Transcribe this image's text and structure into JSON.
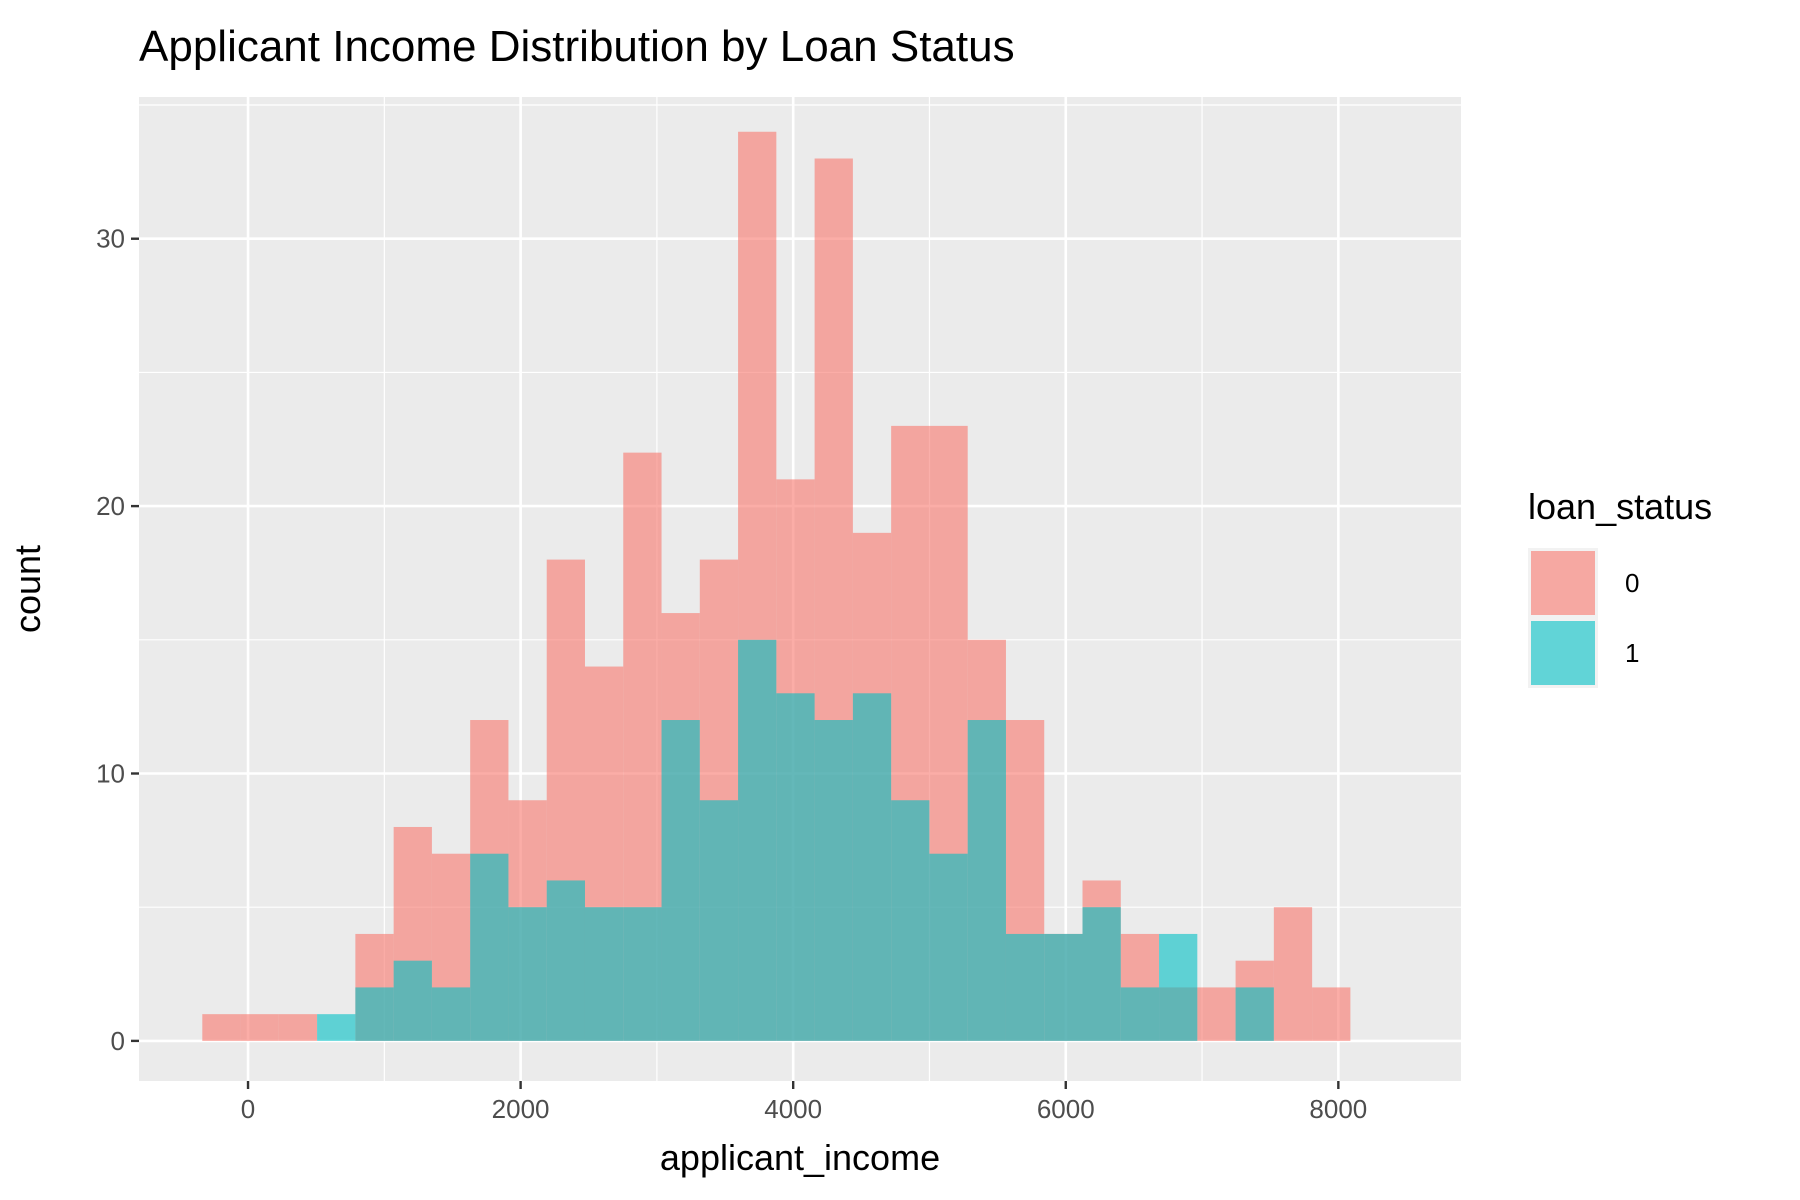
{
  "chart_data": {
    "type": "bar",
    "subtype": "overlapping histogram",
    "title": "Applicant Income Distribution by Loan Status",
    "xlabel": "applicant_income",
    "ylabel": "count",
    "xlim": [
      -800,
      8900
    ],
    "ylim": [
      -1.5,
      35.3
    ],
    "x_ticks": [
      0,
      2000,
      4000,
      6000,
      8000
    ],
    "x_tick_labels": [
      "0",
      "2000",
      "4000",
      "6000",
      "8000"
    ],
    "y_ticks": [
      0,
      10,
      20,
      30
    ],
    "y_tick_labels": [
      "0",
      "10",
      "20",
      "30"
    ],
    "grid": true,
    "legend": {
      "title": "loan_status",
      "position": "right"
    },
    "bin_edges": [
      -335.6,
      -54.8,
      226.0,
      506.8,
      787.6,
      1068.4,
      1349.2,
      1630.0,
      1910.8,
      2191.6,
      2472.4,
      2753.2,
      3034.0,
      3314.8,
      3595.6,
      3876.4,
      4157.2,
      4438.0,
      4718.8,
      4999.6,
      5280.4,
      5561.2,
      5842.0,
      6122.8,
      6403.6,
      6684.4,
      6965.2,
      7246.0,
      7526.8,
      7807.6,
      8088.4
    ],
    "series": [
      {
        "name": "0",
        "color": "#F8766D",
        "opacity": 0.6,
        "values": [
          1,
          1,
          1,
          0,
          4,
          8,
          7,
          12,
          9,
          18,
          14,
          22,
          16,
          18,
          34,
          21,
          33,
          19,
          23,
          23,
          15,
          12,
          4,
          6,
          4,
          2,
          2,
          3,
          5,
          2
        ]
      },
      {
        "name": "1",
        "color": "#00BFC4",
        "opacity": 0.6,
        "values": [
          0,
          0,
          0,
          1,
          2,
          3,
          2,
          7,
          5,
          6,
          5,
          5,
          12,
          9,
          15,
          13,
          12,
          13,
          9,
          7,
          12,
          4,
          4,
          5,
          2,
          4,
          0,
          2,
          0,
          0
        ]
      }
    ]
  }
}
